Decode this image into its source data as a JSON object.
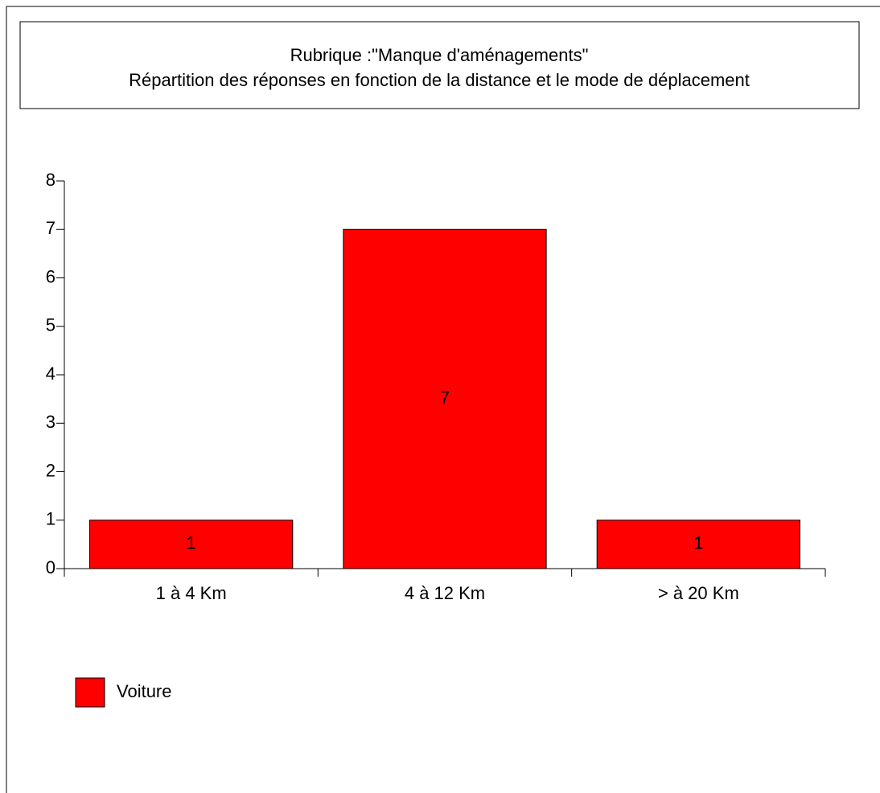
{
  "chart_data": {
    "type": "bar",
    "title": "Rubrique :\"Manque d'aménagements\"",
    "subtitle": "Répartition des réponses en fonction de la distance et le mode de déplacement",
    "categories": [
      "1 à 4 Km",
      "4 à 12 Km",
      "> à 20 Km"
    ],
    "series": [
      {
        "name": "Voiture",
        "color": "#ff0000",
        "values": [
          1,
          7,
          1
        ]
      }
    ],
    "ylim": [
      0,
      8
    ],
    "yticks": [
      0,
      1,
      2,
      3,
      4,
      5,
      6,
      7,
      8
    ],
    "grid": false,
    "legend": "bottom-left"
  }
}
